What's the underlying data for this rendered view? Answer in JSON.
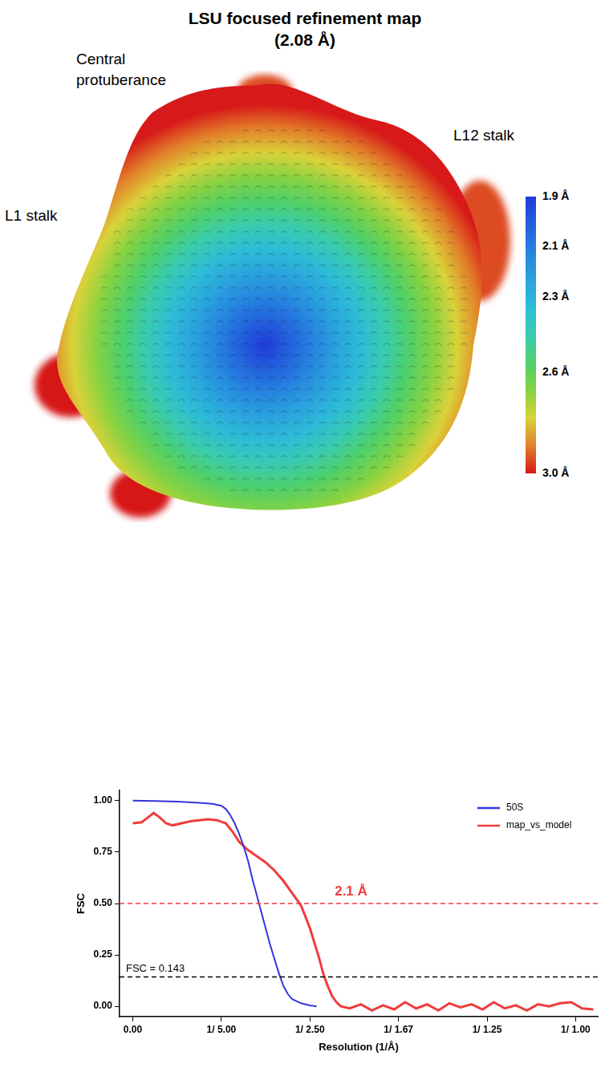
{
  "map_panel": {
    "title": [
      "LSU focused refinement map",
      "(2.08 Å)"
    ],
    "labels": [
      "Central protuberance",
      "L12 stalk",
      "L1 stalk"
    ],
    "colorbar": {
      "range": [
        1.9,
        3.0
      ],
      "ticks": [
        {
          "value": 1.9,
          "label": "1.9 Å"
        },
        {
          "value": 2.1,
          "label": "2.1 Å"
        },
        {
          "value": 2.3,
          "label": "2.3 Å"
        },
        {
          "value": 2.6,
          "label": "2.6 Å"
        },
        {
          "value": 3.0,
          "label": "3.0 Å"
        }
      ]
    }
  },
  "chart_data": {
    "type": "line",
    "x_label": "Resolution (1/Å)",
    "y_label": "FSC",
    "xlim": [
      -0.03,
      1.05
    ],
    "ylim": [
      -0.05,
      1.05
    ],
    "xticks": [
      {
        "value": 0,
        "label": "0.00"
      },
      {
        "value": 0.2,
        "label": "1/ 5.00"
      },
      {
        "value": 0.4,
        "label": "1/ 2.50"
      },
      {
        "value": 0.6,
        "label": "1/ 1.67"
      },
      {
        "value": 0.8,
        "label": "1/ 1.25"
      },
      {
        "value": 1.0,
        "label": "1/ 1.00"
      }
    ],
    "yticks": [
      {
        "value": 0,
        "label": "0.00"
      },
      {
        "value": 0.25,
        "label": "0.25"
      },
      {
        "value": 0.5,
        "label": "0.50"
      },
      {
        "value": 0.75,
        "label": "0.75"
      },
      {
        "value": 1.0,
        "label": "1.00"
      }
    ],
    "grid": false,
    "legend": "top right",
    "series": [
      {
        "name": "50S",
        "color": "#3535dd",
        "x": [
          0,
          0.05,
          0.1,
          0.15,
          0.18,
          0.2,
          0.21,
          0.22,
          0.23,
          0.24,
          0.25,
          0.26,
          0.27,
          0.28,
          0.29,
          0.3,
          0.31,
          0.32,
          0.33,
          0.34,
          0.35,
          0.36,
          0.38,
          0.4,
          0.415
        ],
        "values": [
          1.0,
          0.998,
          0.995,
          0.99,
          0.985,
          0.975,
          0.96,
          0.93,
          0.89,
          0.84,
          0.78,
          0.71,
          0.62,
          0.54,
          0.46,
          0.38,
          0.3,
          0.23,
          0.16,
          0.1,
          0.06,
          0.035,
          0.015,
          0.005,
          0.0
        ]
      },
      {
        "name": "map_vs_model",
        "color": "#f03c3c",
        "x": [
          0,
          0.02,
          0.035,
          0.047,
          0.06,
          0.075,
          0.09,
          0.11,
          0.13,
          0.15,
          0.17,
          0.19,
          0.21,
          0.225,
          0.24,
          0.26,
          0.28,
          0.3,
          0.32,
          0.34,
          0.36,
          0.38,
          0.4,
          0.42,
          0.43,
          0.44,
          0.45,
          0.46,
          0.47,
          0.49,
          0.515,
          0.54,
          0.565,
          0.59,
          0.615,
          0.64,
          0.665,
          0.69,
          0.715,
          0.74,
          0.765,
          0.79,
          0.815,
          0.84,
          0.865,
          0.89,
          0.915,
          0.94,
          0.965,
          0.99,
          1.015,
          1.04
        ],
        "values": [
          0.89,
          0.895,
          0.92,
          0.94,
          0.92,
          0.89,
          0.88,
          0.89,
          0.9,
          0.905,
          0.91,
          0.905,
          0.89,
          0.85,
          0.8,
          0.76,
          0.73,
          0.7,
          0.66,
          0.61,
          0.55,
          0.49,
          0.38,
          0.24,
          0.16,
          0.1,
          0.05,
          0.02,
          0.0,
          -0.01,
          0.01,
          -0.02,
          0.005,
          -0.015,
          0.02,
          -0.01,
          0.01,
          -0.02,
          0.015,
          -0.005,
          0.01,
          -0.015,
          0.02,
          -0.01,
          0.005,
          -0.02,
          0.01,
          0.0,
          0.015,
          0.02,
          -0.01,
          -0.015
        ]
      }
    ],
    "reference_lines": [
      {
        "value": 0.5,
        "color": "#f03c3c",
        "line_style": "dashed",
        "label": "2.1 Å"
      },
      {
        "value": 0.143,
        "color": "#000000",
        "line_style": "dashed",
        "label": "FSC = 0.143"
      }
    ]
  }
}
